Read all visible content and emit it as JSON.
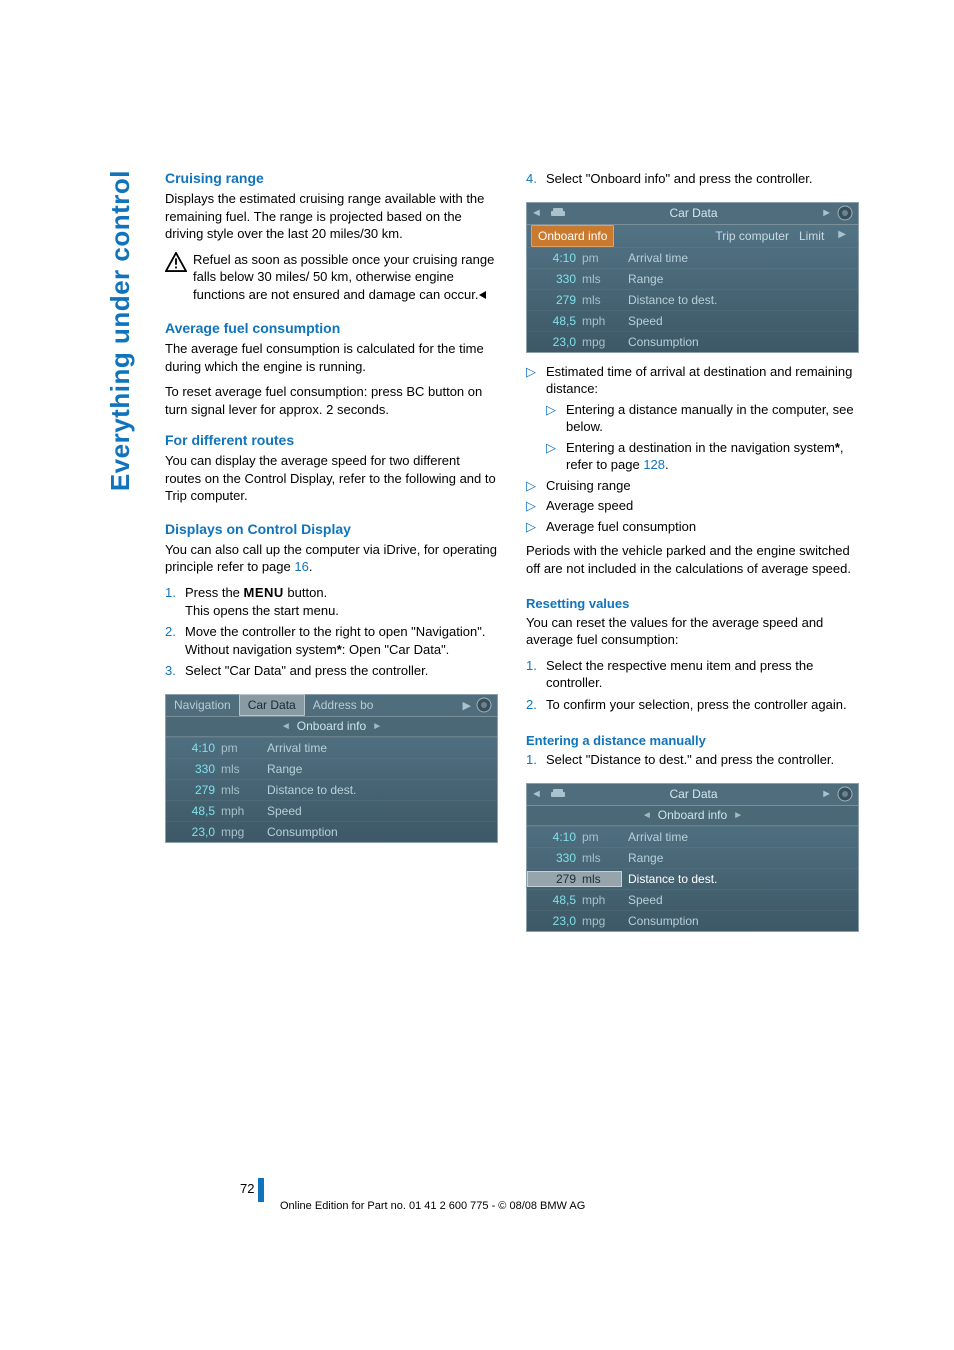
{
  "sidebar_title": "Everything under control",
  "page_number": "72",
  "footer": "Online Edition for Part no. 01 41 2 600 775 - © 08/08 BMW AG",
  "left": {
    "cruising_range": {
      "heading": "Cruising range",
      "p1": "Displays the estimated cruising range available with the remaining fuel. The range is projected based on the driving style over the last 20 miles/30 km.",
      "warn": "Refuel as soon as possible once your cruising range falls below 30 miles/ 50 km, otherwise engine functions are not ensured and damage can occur."
    },
    "avg_fuel": {
      "heading": "Average fuel consumption",
      "p1": "The average fuel consumption is calculated for the time during which the engine is running.",
      "p2": "To reset average fuel consumption: press BC button on turn signal lever for approx. 2 seconds."
    },
    "diff_routes": {
      "heading": "For different routes",
      "p1": "You can display the average speed for two different routes on the Control Display, refer to the following and to Trip computer."
    },
    "ctrl_display": {
      "heading": "Displays on Control Display",
      "intro": "You can also call up the computer via iDrive, for operating principle refer to page ",
      "intro_page": "16",
      "intro_end": ".",
      "step1a": "Press the ",
      "step1_menu": "MENU",
      "step1b": " button.",
      "step1c": "This opens the start menu.",
      "step2a": "Move the controller to the right to open \"Navigation\".",
      "step2b": "Without navigation system",
      "step2c": ": Open \"Car Data\".",
      "step3": "Select \"Car Data\" and press the controller."
    },
    "screenshot1": {
      "tabs": {
        "nav": "Navigation",
        "car": "Car Data",
        "addr": "Address bo"
      },
      "sub": "Onboard info",
      "rows": [
        {
          "v": "4:10",
          "u": "pm",
          "l": "Arrival time"
        },
        {
          "v": "330",
          "u": "mls",
          "l": "Range"
        },
        {
          "v": "279",
          "u": "mls",
          "l": "Distance to dest."
        },
        {
          "v": "48,5",
          "u": "mph",
          "l": "Speed"
        },
        {
          "v": "23,0",
          "u": "mpg",
          "l": "Consumption"
        }
      ]
    }
  },
  "right": {
    "step4": "Select \"Onboard info\" and press the controller.",
    "screenshot2": {
      "header_center": "Car Data",
      "onboard": "Onboard info",
      "trip": "Trip computer",
      "limit": "Limit",
      "rows": [
        {
          "v": "4:10",
          "u": "pm",
          "l": "Arrival time"
        },
        {
          "v": "330",
          "u": "mls",
          "l": "Range"
        },
        {
          "v": "279",
          "u": "mls",
          "l": "Distance to dest."
        },
        {
          "v": "48,5",
          "u": "mph",
          "l": "Speed"
        },
        {
          "v": "23,0",
          "u": "mpg",
          "l": "Consumption"
        }
      ]
    },
    "bullets": {
      "b1": "Estimated time of arrival at destination and remaining distance:",
      "b1a": "Entering a distance manually in the computer, see below.",
      "b1b_pre": "Entering a destination in the navigation system",
      "b1b_post": ", refer to page ",
      "b1b_page": "128",
      "b1b_end": ".",
      "b2": "Cruising range",
      "b3": "Average speed",
      "b4": "Average fuel consumption"
    },
    "periods": "Periods with the vehicle parked and the engine switched off are not included in the calculations of average speed.",
    "resetting": {
      "heading": "Resetting values",
      "intro": "You can reset the values for the average speed and average fuel consumption:",
      "s1": "Select the respective menu item and press the controller.",
      "s2": "To confirm your selection, press the controller again."
    },
    "entering": {
      "heading": "Entering a distance manually",
      "s1": "Select \"Distance to dest.\" and press the controller."
    },
    "screenshot3": {
      "header_center": "Car Data",
      "sub": "Onboard info",
      "rows": [
        {
          "v": "4:10",
          "u": "pm",
          "l": "Arrival time"
        },
        {
          "v": "330",
          "u": "mls",
          "l": "Range"
        },
        {
          "v": "279",
          "u": "mls",
          "l": "Distance to dest.",
          "hl": true
        },
        {
          "v": "48,5",
          "u": "mph",
          "l": "Speed"
        },
        {
          "v": "23,0",
          "u": "mpg",
          "l": "Consumption"
        }
      ]
    }
  }
}
